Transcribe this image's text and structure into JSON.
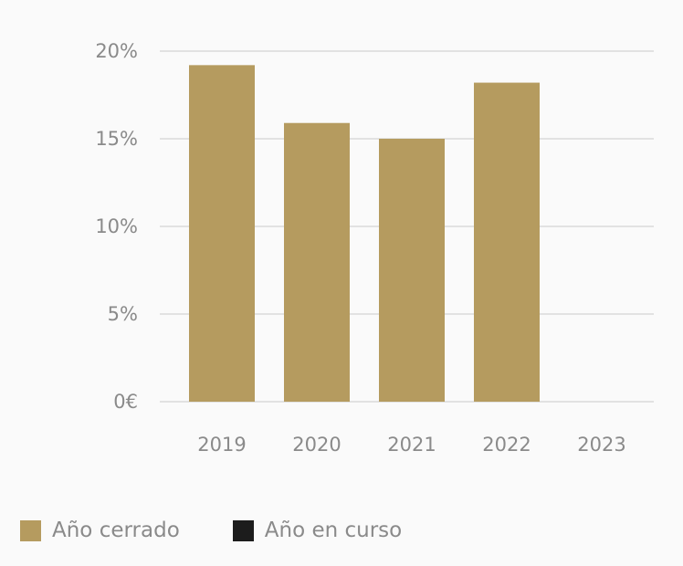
{
  "chart_data": {
    "type": "bar",
    "categories": [
      "2019",
      "2020",
      "2021",
      "2022",
      "2023"
    ],
    "series": [
      {
        "name": "Año cerrado",
        "values": [
          19.2,
          15.9,
          15.0,
          18.2,
          null
        ],
        "color": "#b59b5f"
      },
      {
        "name": "Año en curso",
        "values": [
          null,
          null,
          null,
          null,
          null
        ],
        "color": "#1c1c1c"
      }
    ],
    "ylim": [
      0,
      20
    ],
    "yticks": [
      {
        "value": 0,
        "label": "0€"
      },
      {
        "value": 5,
        "label": "5%"
      },
      {
        "value": 10,
        "label": "10%"
      },
      {
        "value": 15,
        "label": "15%"
      },
      {
        "value": 20,
        "label": "20%"
      }
    ],
    "grid": true,
    "legend_position": "bottom-left"
  }
}
